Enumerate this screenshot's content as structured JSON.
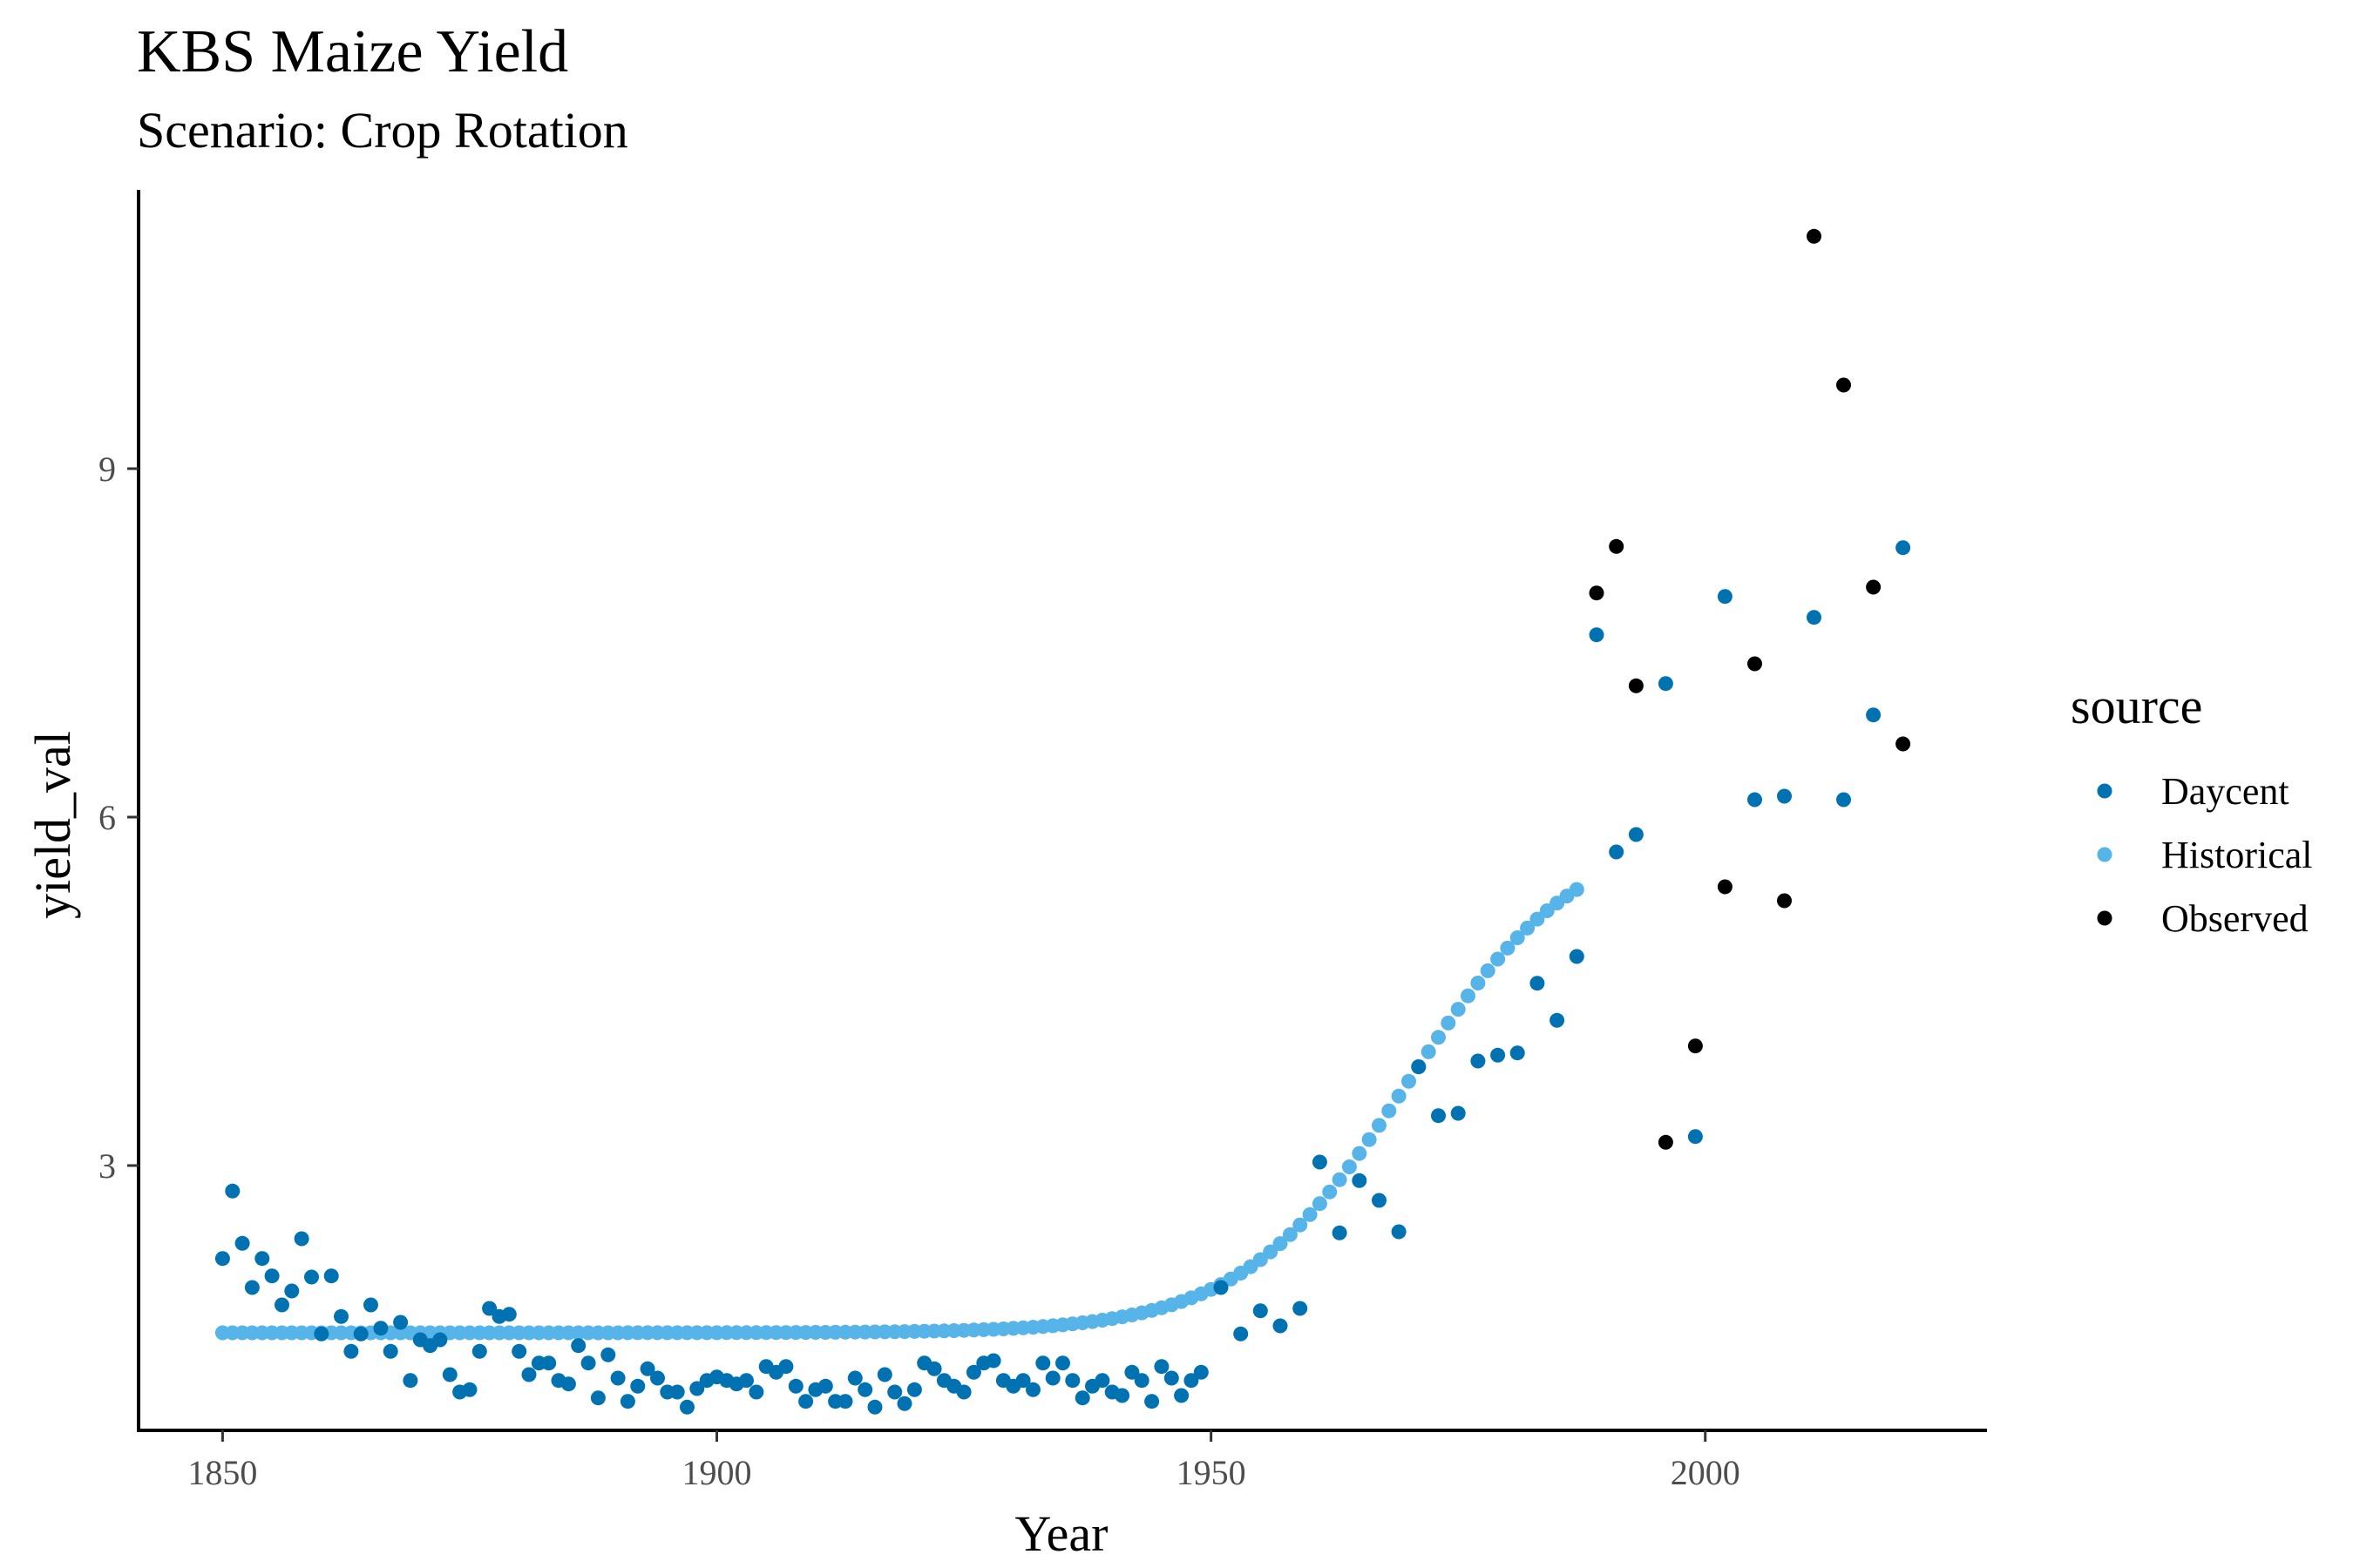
{
  "chart_data": {
    "type": "scatter",
    "title": "KBS Maize Yield",
    "subtitle": "Scenario: Crop Rotation",
    "xlabel": "Year",
    "ylabel": "yield_val",
    "xlim": [
      1841.5,
      2028.5
    ],
    "ylim": [
      0.72,
      11.4
    ],
    "xticks": [
      1850,
      1900,
      1950,
      2000
    ],
    "yticks": [
      3,
      6,
      9
    ],
    "grid": false,
    "legend": {
      "title": "source",
      "position": "right"
    },
    "series": [
      {
        "name": "Daycent",
        "color": "#0072B2",
        "points": [
          [
            1850,
            2.2
          ],
          [
            1851,
            2.78
          ],
          [
            1852,
            2.33
          ],
          [
            1853,
            1.95
          ],
          [
            1854,
            2.2
          ],
          [
            1855,
            2.05
          ],
          [
            1856,
            1.8
          ],
          [
            1857,
            1.92
          ],
          [
            1858,
            2.37
          ],
          [
            1859,
            2.04
          ],
          [
            1860,
            1.55
          ],
          [
            1861,
            2.05
          ],
          [
            1862,
            1.7
          ],
          [
            1863,
            1.4
          ],
          [
            1864,
            1.55
          ],
          [
            1865,
            1.8
          ],
          [
            1866,
            1.6
          ],
          [
            1867,
            1.4
          ],
          [
            1868,
            1.65
          ],
          [
            1869,
            1.15
          ],
          [
            1870,
            1.5
          ],
          [
            1871,
            1.45
          ],
          [
            1872,
            1.5
          ],
          [
            1873,
            1.2
          ],
          [
            1874,
            1.05
          ],
          [
            1875,
            1.07
          ],
          [
            1876,
            1.4
          ],
          [
            1877,
            1.77
          ],
          [
            1878,
            1.7
          ],
          [
            1879,
            1.72
          ],
          [
            1880,
            1.4
          ],
          [
            1881,
            1.2
          ],
          [
            1882,
            1.3
          ],
          [
            1883,
            1.3
          ],
          [
            1884,
            1.15
          ],
          [
            1885,
            1.12
          ],
          [
            1886,
            1.45
          ],
          [
            1887,
            1.3
          ],
          [
            1888,
            1.0
          ],
          [
            1889,
            1.37
          ],
          [
            1890,
            1.17
          ],
          [
            1891,
            0.97
          ],
          [
            1892,
            1.1
          ],
          [
            1893,
            1.25
          ],
          [
            1894,
            1.17
          ],
          [
            1895,
            1.05
          ],
          [
            1896,
            1.05
          ],
          [
            1897,
            0.92
          ],
          [
            1898,
            1.08
          ],
          [
            1899,
            1.15
          ],
          [
            1900,
            1.18
          ],
          [
            1901,
            1.15
          ],
          [
            1902,
            1.12
          ],
          [
            1903,
            1.15
          ],
          [
            1904,
            1.05
          ],
          [
            1905,
            1.27
          ],
          [
            1906,
            1.22
          ],
          [
            1907,
            1.27
          ],
          [
            1908,
            1.1
          ],
          [
            1909,
            0.97
          ],
          [
            1910,
            1.07
          ],
          [
            1911,
            1.1
          ],
          [
            1912,
            0.97
          ],
          [
            1913,
            0.97
          ],
          [
            1914,
            1.17
          ],
          [
            1915,
            1.07
          ],
          [
            1916,
            0.92
          ],
          [
            1917,
            1.2
          ],
          [
            1918,
            1.05
          ],
          [
            1919,
            0.95
          ],
          [
            1920,
            1.07
          ],
          [
            1921,
            1.3
          ],
          [
            1922,
            1.25
          ],
          [
            1923,
            1.15
          ],
          [
            1924,
            1.1
          ],
          [
            1925,
            1.05
          ],
          [
            1926,
            1.22
          ],
          [
            1927,
            1.3
          ],
          [
            1928,
            1.32
          ],
          [
            1929,
            1.15
          ],
          [
            1930,
            1.1
          ],
          [
            1931,
            1.15
          ],
          [
            1932,
            1.07
          ],
          [
            1933,
            1.3
          ],
          [
            1934,
            1.17
          ],
          [
            1935,
            1.3
          ],
          [
            1936,
            1.15
          ],
          [
            1937,
            1.0
          ],
          [
            1938,
            1.1
          ],
          [
            1939,
            1.15
          ],
          [
            1940,
            1.05
          ],
          [
            1941,
            1.02
          ],
          [
            1942,
            1.22
          ],
          [
            1943,
            1.15
          ],
          [
            1944,
            0.97
          ],
          [
            1945,
            1.27
          ],
          [
            1946,
            1.17
          ],
          [
            1947,
            1.02
          ],
          [
            1948,
            1.15
          ],
          [
            1949,
            1.22
          ],
          [
            1951,
            1.95
          ],
          [
            1953,
            1.55
          ],
          [
            1955,
            1.75
          ],
          [
            1957,
            1.62
          ],
          [
            1959,
            1.77
          ],
          [
            1961,
            3.03
          ],
          [
            1963,
            2.42
          ],
          [
            1965,
            2.87
          ],
          [
            1967,
            2.7
          ],
          [
            1969,
            2.43
          ],
          [
            1971,
            3.85
          ],
          [
            1973,
            3.43
          ],
          [
            1975,
            3.45
          ],
          [
            1977,
            3.9
          ],
          [
            1979,
            3.95
          ],
          [
            1981,
            3.97
          ],
          [
            1983,
            4.57
          ],
          [
            1985,
            4.25
          ],
          [
            1987,
            4.8
          ],
          [
            1989,
            7.57
          ],
          [
            1991,
            5.7
          ],
          [
            1993,
            5.85
          ],
          [
            1996,
            7.15
          ],
          [
            1999,
            3.25
          ],
          [
            2002,
            7.9
          ],
          [
            2005,
            6.15
          ],
          [
            2008,
            6.18
          ],
          [
            2011,
            7.72
          ],
          [
            2014,
            6.15
          ],
          [
            2017,
            6.88
          ],
          [
            2020,
            8.32
          ]
        ]
      },
      {
        "name": "Historical",
        "color": "#56B4E9",
        "x_range": [
          1850,
          1987
        ],
        "curve": {
          "base": 1.56,
          "amplitude": 4.33,
          "midpoint": 1970,
          "steepness": 0.118
        }
      },
      {
        "name": "Observed",
        "color": "#000000",
        "points": [
          [
            1989,
            7.93
          ],
          [
            1991,
            8.33
          ],
          [
            1993,
            7.13
          ],
          [
            1996,
            3.2
          ],
          [
            1999,
            4.03
          ],
          [
            2002,
            5.4
          ],
          [
            2005,
            7.32
          ],
          [
            2008,
            5.28
          ],
          [
            2011,
            11.0
          ],
          [
            2014,
            9.72
          ],
          [
            2017,
            7.98
          ],
          [
            2020,
            6.63
          ]
        ]
      }
    ]
  }
}
